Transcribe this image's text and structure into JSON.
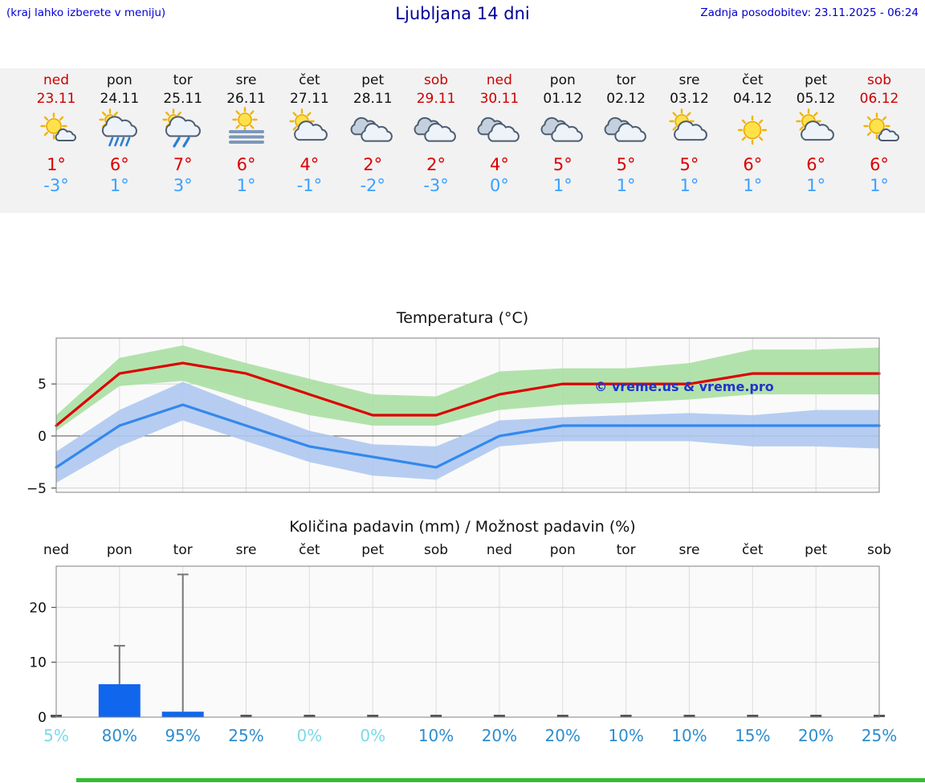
{
  "header": {
    "menu_hint": "(kraj lahko izberete v meniju)",
    "title": "Ljubljana 14 dni",
    "last_update": "Zadnja posodobitev: 23.11.2025 - 06:24"
  },
  "colors": {
    "hint_blue": "#0000dd",
    "title_blue": "#000099",
    "update_blue": "#0000cc",
    "weekend_red": "#cc0000",
    "weekday_black": "#111111",
    "max_temp_red": "#dd0000",
    "min_temp_blue": "#3aa0ff",
    "temp_max_line": "#dd0000",
    "temp_min_line": "#3388ee",
    "temp_max_band": "#aadfa2",
    "temp_min_band": "#aec8ef",
    "precip_bar": "#1166ee",
    "pop_low": "#7cd9e8",
    "pop_high": "#2e8ccd",
    "footer_green": "#2fbf2f"
  },
  "days": [
    {
      "name": "ned",
      "date": "23.11",
      "weekend": true,
      "icon": "mostly-sunny",
      "tmax": "1°",
      "tmin": "-3°"
    },
    {
      "name": "pon",
      "date": "24.11",
      "weekend": false,
      "icon": "rain",
      "tmax": "6°",
      "tmin": "1°"
    },
    {
      "name": "tor",
      "date": "25.11",
      "weekend": false,
      "icon": "showers",
      "tmax": "7°",
      "tmin": "3°"
    },
    {
      "name": "sre",
      "date": "26.11",
      "weekend": false,
      "icon": "fog",
      "tmax": "6°",
      "tmin": "1°"
    },
    {
      "name": "čet",
      "date": "27.11",
      "weekend": false,
      "icon": "partly-cloudy",
      "tmax": "4°",
      "tmin": "-1°"
    },
    {
      "name": "pet",
      "date": "28.11",
      "weekend": false,
      "icon": "cloudy",
      "tmax": "2°",
      "tmin": "-2°"
    },
    {
      "name": "sob",
      "date": "29.11",
      "weekend": true,
      "icon": "cloudy",
      "tmax": "2°",
      "tmin": "-3°"
    },
    {
      "name": "ned",
      "date": "30.11",
      "weekend": true,
      "icon": "cloudy",
      "tmax": "4°",
      "tmin": "0°"
    },
    {
      "name": "pon",
      "date": "01.12",
      "weekend": false,
      "icon": "cloudy",
      "tmax": "5°",
      "tmin": "1°"
    },
    {
      "name": "tor",
      "date": "02.12",
      "weekend": false,
      "icon": "cloudy",
      "tmax": "5°",
      "tmin": "1°"
    },
    {
      "name": "sre",
      "date": "03.12",
      "weekend": false,
      "icon": "partly-cloudy",
      "tmax": "5°",
      "tmin": "1°"
    },
    {
      "name": "čet",
      "date": "04.12",
      "weekend": false,
      "icon": "sunny",
      "tmax": "6°",
      "tmin": "1°"
    },
    {
      "name": "pet",
      "date": "05.12",
      "weekend": false,
      "icon": "partly-cloudy",
      "tmax": "6°",
      "tmin": "1°"
    },
    {
      "name": "sob",
      "date": "06.12",
      "weekend": true,
      "icon": "mostly-sunny",
      "tmax": "6°",
      "tmin": "1°"
    }
  ],
  "chart_data": [
    {
      "type": "line",
      "title": "Temperatura (°C)",
      "xlabel": "",
      "ylabel": "",
      "x_categories": [
        "ned",
        "pon",
        "tor",
        "sre",
        "čet",
        "pet",
        "sob",
        "ned",
        "pon",
        "tor",
        "sre",
        "čet",
        "pet",
        "sob"
      ],
      "ylim": [
        -5.4,
        9.4
      ],
      "yticks": [
        -5,
        0,
        5
      ],
      "grid": true,
      "watermark": "© vreme.us & vreme.pro",
      "series": [
        {
          "name": "max-temperature",
          "color": "#dd0000",
          "values": [
            1,
            6,
            7,
            6,
            4,
            2,
            2,
            4,
            5,
            5,
            5,
            6,
            6,
            6
          ]
        },
        {
          "name": "min-temperature",
          "color": "#3388ee",
          "values": [
            -3,
            1,
            3,
            1,
            -1,
            -2,
            -3,
            0,
            1,
            1,
            1,
            1,
            1,
            1
          ]
        }
      ],
      "bands": [
        {
          "name": "max-temp-range",
          "color": "#aadfa2",
          "upper": [
            2,
            7.5,
            8.7,
            7,
            5.5,
            4,
            3.8,
            6.2,
            6.5,
            6.5,
            7,
            8.3,
            8.3,
            8.5
          ],
          "lower": [
            0.5,
            4.8,
            5.3,
            3.5,
            2,
            1,
            1,
            2.5,
            3,
            3.2,
            3.5,
            4,
            4,
            4
          ]
        },
        {
          "name": "min-temp-range",
          "color": "#aec8ef",
          "upper": [
            -1.5,
            2.5,
            5.2,
            2.8,
            0.5,
            -0.8,
            -1,
            1.5,
            1.8,
            2,
            2.2,
            2,
            2.5,
            2.5
          ],
          "lower": [
            -4.5,
            -1,
            1.5,
            -0.5,
            -2.5,
            -3.8,
            -4.2,
            -1,
            -0.5,
            -0.5,
            -0.5,
            -1,
            -1,
            -1.2
          ]
        }
      ]
    },
    {
      "type": "bar",
      "title": "Količina padavin (mm) / Možnost padavin (%)",
      "xlabel": "",
      "ylabel": "",
      "categories": [
        "ned",
        "pon",
        "tor",
        "sre",
        "čet",
        "pet",
        "sob",
        "ned",
        "pon",
        "tor",
        "sre",
        "čet",
        "pet",
        "sob"
      ],
      "values": [
        0,
        6,
        1,
        0,
        0,
        0,
        0,
        0,
        0,
        0,
        0,
        0,
        0,
        0
      ],
      "whiskers": [
        0,
        13,
        26,
        0,
        0,
        0,
        0,
        0,
        0,
        0,
        0,
        0,
        0,
        0
      ],
      "pop_percent": [
        5,
        80,
        95,
        25,
        0,
        0,
        10,
        20,
        20,
        10,
        10,
        15,
        20,
        25
      ],
      "pop_labels": [
        "5%",
        "80%",
        "95%",
        "25%",
        "0%",
        "0%",
        "10%",
        "20%",
        "20%",
        "10%",
        "10%",
        "15%",
        "20%",
        "25%"
      ],
      "ylim": [
        0,
        27.5
      ],
      "yticks": [
        0,
        10,
        20
      ],
      "grid": true
    }
  ]
}
